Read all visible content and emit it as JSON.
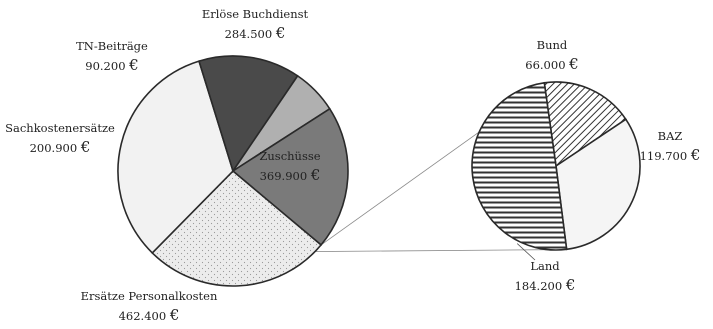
{
  "chart_data": {
    "type": "pie",
    "subtype": "pie-of-pie",
    "title": "",
    "main_pie": {
      "slices": [
        {
          "name": "Zuschüsse",
          "value": 369900,
          "label": "Zuschüsse",
          "value_label": "369.900",
          "fill": "#e8e8e8",
          "pattern": "dots",
          "exploded_into_secondary": true
        },
        {
          "name": "Ersätze Personalkosten",
          "value": 462400,
          "label": "Ersätze Personalkosten",
          "value_label": "462.400",
          "fill": "#f2f2f2",
          "pattern": "none"
        },
        {
          "name": "Sachkostenersätze",
          "value": 200900,
          "label": "Sachkostenersätze",
          "value_label": "200.900",
          "fill": "#4a4a4a",
          "pattern": "none"
        },
        {
          "name": "TN-Beiträge",
          "value": 90200,
          "label": "TN-Beiträge",
          "value_label": "90.200",
          "fill": "#b0b0b0",
          "pattern": "none"
        },
        {
          "name": "Erlöse Buchdienst",
          "value": 284500,
          "label": "Erlöse Buchdienst",
          "value_label": "284.500",
          "fill": "#7a7a7a",
          "pattern": "none"
        }
      ]
    },
    "secondary_pie": {
      "breakdown_of": "Zuschüsse",
      "slices": [
        {
          "name": "Bund",
          "value": 66000,
          "label": "Bund",
          "value_label": "66.000",
          "fill": "#ffffff",
          "pattern": "diagonal"
        },
        {
          "name": "BAZ",
          "value": 119700,
          "label": "BAZ",
          "value_label": "119.700",
          "fill": "#f5f5f5",
          "pattern": "none"
        },
        {
          "name": "Land",
          "value": 184200,
          "label": "Land",
          "value_label": "184.200",
          "fill": "#ffffff",
          "pattern": "horizontal"
        }
      ]
    },
    "currency_symbol": "€",
    "legend": "none",
    "grid": false
  }
}
